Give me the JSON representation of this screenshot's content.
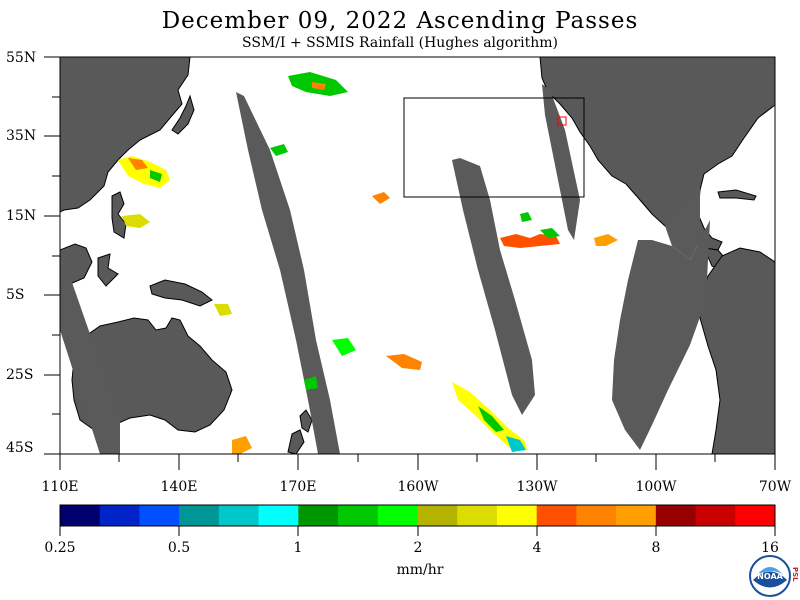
{
  "title": "December 09, 2022  Ascending Passes",
  "subtitle": "SSM/I + SSMIS Rainfall (Hughes algorithm)",
  "lat_labels": [
    "55N",
    "35N",
    "15N",
    "5S",
    "25S",
    "45S"
  ],
  "lon_labels": [
    "110E",
    "140E",
    "170E",
    "160W",
    "130W",
    "100W",
    "70W"
  ],
  "colorbar": {
    "colors": [
      "#00006e",
      "#0024c8",
      "#0050ff",
      "#009696",
      "#00c8c8",
      "#00ffff",
      "#009600",
      "#00c800",
      "#00ff00",
      "#b4b400",
      "#dcdc00",
      "#ffff00",
      "#ff5000",
      "#ff8200",
      "#ffa000",
      "#960000",
      "#c80000",
      "#ff0000"
    ],
    "tick_labels": [
      "0.25",
      "0.5",
      "1",
      "2",
      "4",
      "8",
      "16"
    ],
    "units": "mm/hr"
  },
  "colors": {
    "land": "#595959",
    "swath_gap": "#5a5a5a",
    "background": "#ffffff"
  },
  "logo": {
    "icon": "noaa-logo-icon",
    "text": "NOAA",
    "side_text": "PSL"
  }
}
